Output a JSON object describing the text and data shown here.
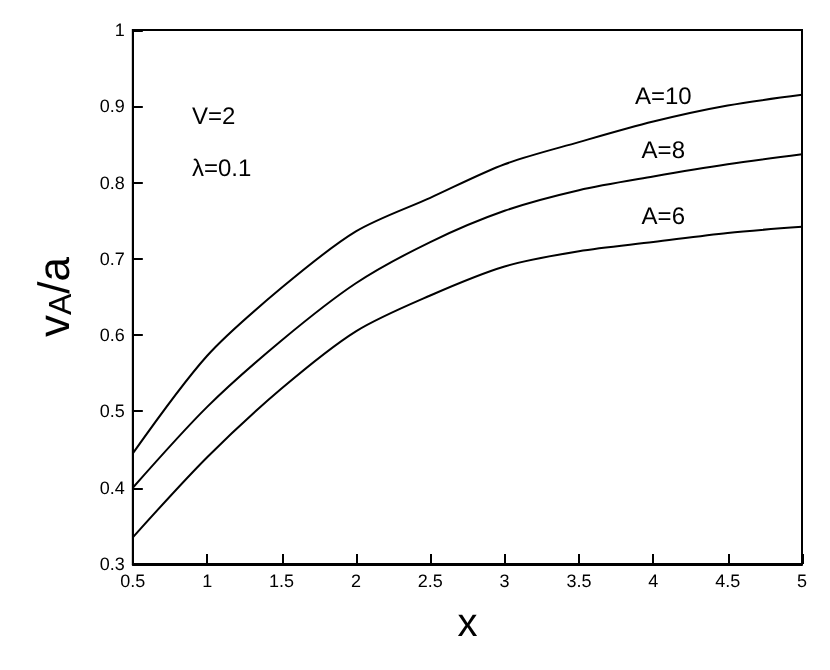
{
  "chart_data": {
    "type": "line",
    "xlabel": "x",
    "ylabel": "v$_{A}$/a",
    "x": [
      0.5,
      1,
      1.5,
      2,
      2.5,
      3,
      3.5,
      4,
      4.5,
      5
    ],
    "series": [
      {
        "name": "A=10",
        "color": "#000000",
        "values": [
          0.445,
          0.573,
          0.662,
          0.736,
          0.78,
          0.824,
          0.853,
          0.88,
          0.901,
          0.915
        ]
      },
      {
        "name": "A=8",
        "color": "#000000",
        "values": [
          0.4,
          0.506,
          0.593,
          0.668,
          0.722,
          0.763,
          0.79,
          0.808,
          0.824,
          0.837
        ]
      },
      {
        "name": "A=6",
        "color": "#000000",
        "values": [
          0.335,
          0.44,
          0.53,
          0.605,
          0.652,
          0.69,
          0.71,
          0.722,
          0.734,
          0.742
        ]
      }
    ],
    "annotations": [
      "V=2",
      "λ=0.1"
    ],
    "xlim": [
      0.5,
      5
    ],
    "xticks": [
      0.5,
      1,
      1.5,
      2,
      2.5,
      3,
      3.5,
      4,
      4.5,
      5
    ],
    "ylim": [
      0.3,
      1
    ],
    "yticks": [
      0.3,
      0.4,
      0.5,
      0.6,
      0.7,
      0.8,
      0.9,
      1
    ],
    "grid": false,
    "legend": false,
    "marker": "none",
    "line_style": "solid"
  }
}
